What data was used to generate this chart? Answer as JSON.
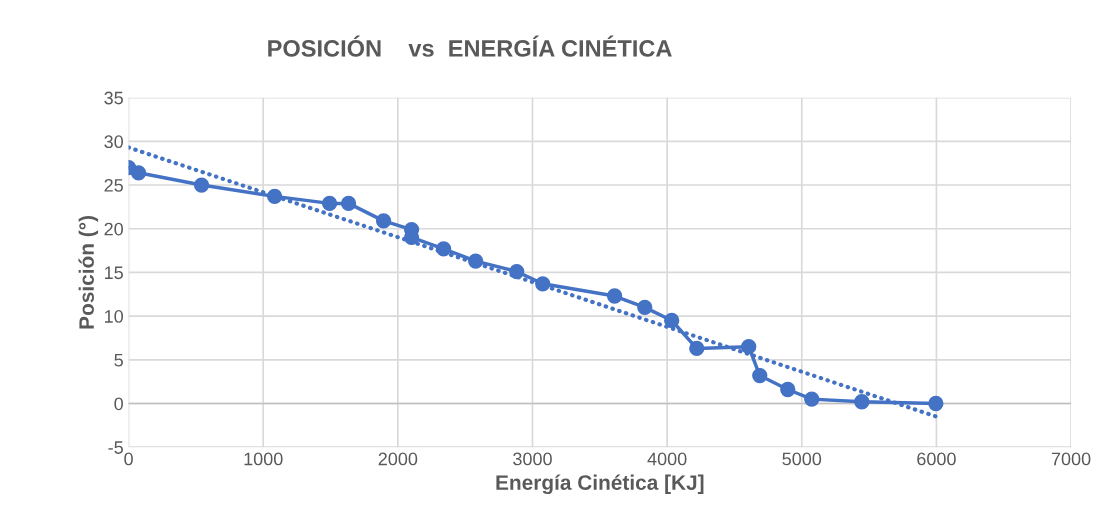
{
  "chart_data": {
    "type": "line",
    "title": "POSICIÓN    vs  ENERGÍA CINÉTICA",
    "xlabel": "Energía Cinética [KJ]",
    "ylabel": "Posición (°)",
    "xlim": [
      0,
      7000
    ],
    "xticks": [
      0,
      1000,
      2000,
      3000,
      4000,
      5000,
      6000,
      7000
    ],
    "ylim": [
      -5,
      35
    ],
    "yticks": [
      -5,
      0,
      5,
      10,
      15,
      20,
      25,
      30,
      35
    ],
    "grid": true,
    "legend": false,
    "series": [
      {
        "color": "#4472c4",
        "marker": "circle",
        "line_style": "solid",
        "x": [
          0,
          74,
          542,
          1085,
          1493,
          1634,
          1894,
          2102,
          2102,
          2340,
          2578,
          2883,
          3076,
          3610,
          3834,
          4034,
          4220,
          4606,
          4688,
          4896,
          5074,
          5446,
          5996
        ],
        "values": [
          27.0,
          26.4,
          25.0,
          23.7,
          22.9,
          22.9,
          20.9,
          19.9,
          19.0,
          17.7,
          16.3,
          15.1,
          13.7,
          12.3,
          11.0,
          9.5,
          6.3,
          6.5,
          3.2,
          1.6,
          0.5,
          0.2,
          0.0
        ]
      },
      {
        "color": "#4472c4",
        "marker": "none",
        "line_style": "dotted",
        "x": [
          0,
          6000
        ],
        "values": [
          29.3,
          -1.5
        ]
      }
    ]
  }
}
